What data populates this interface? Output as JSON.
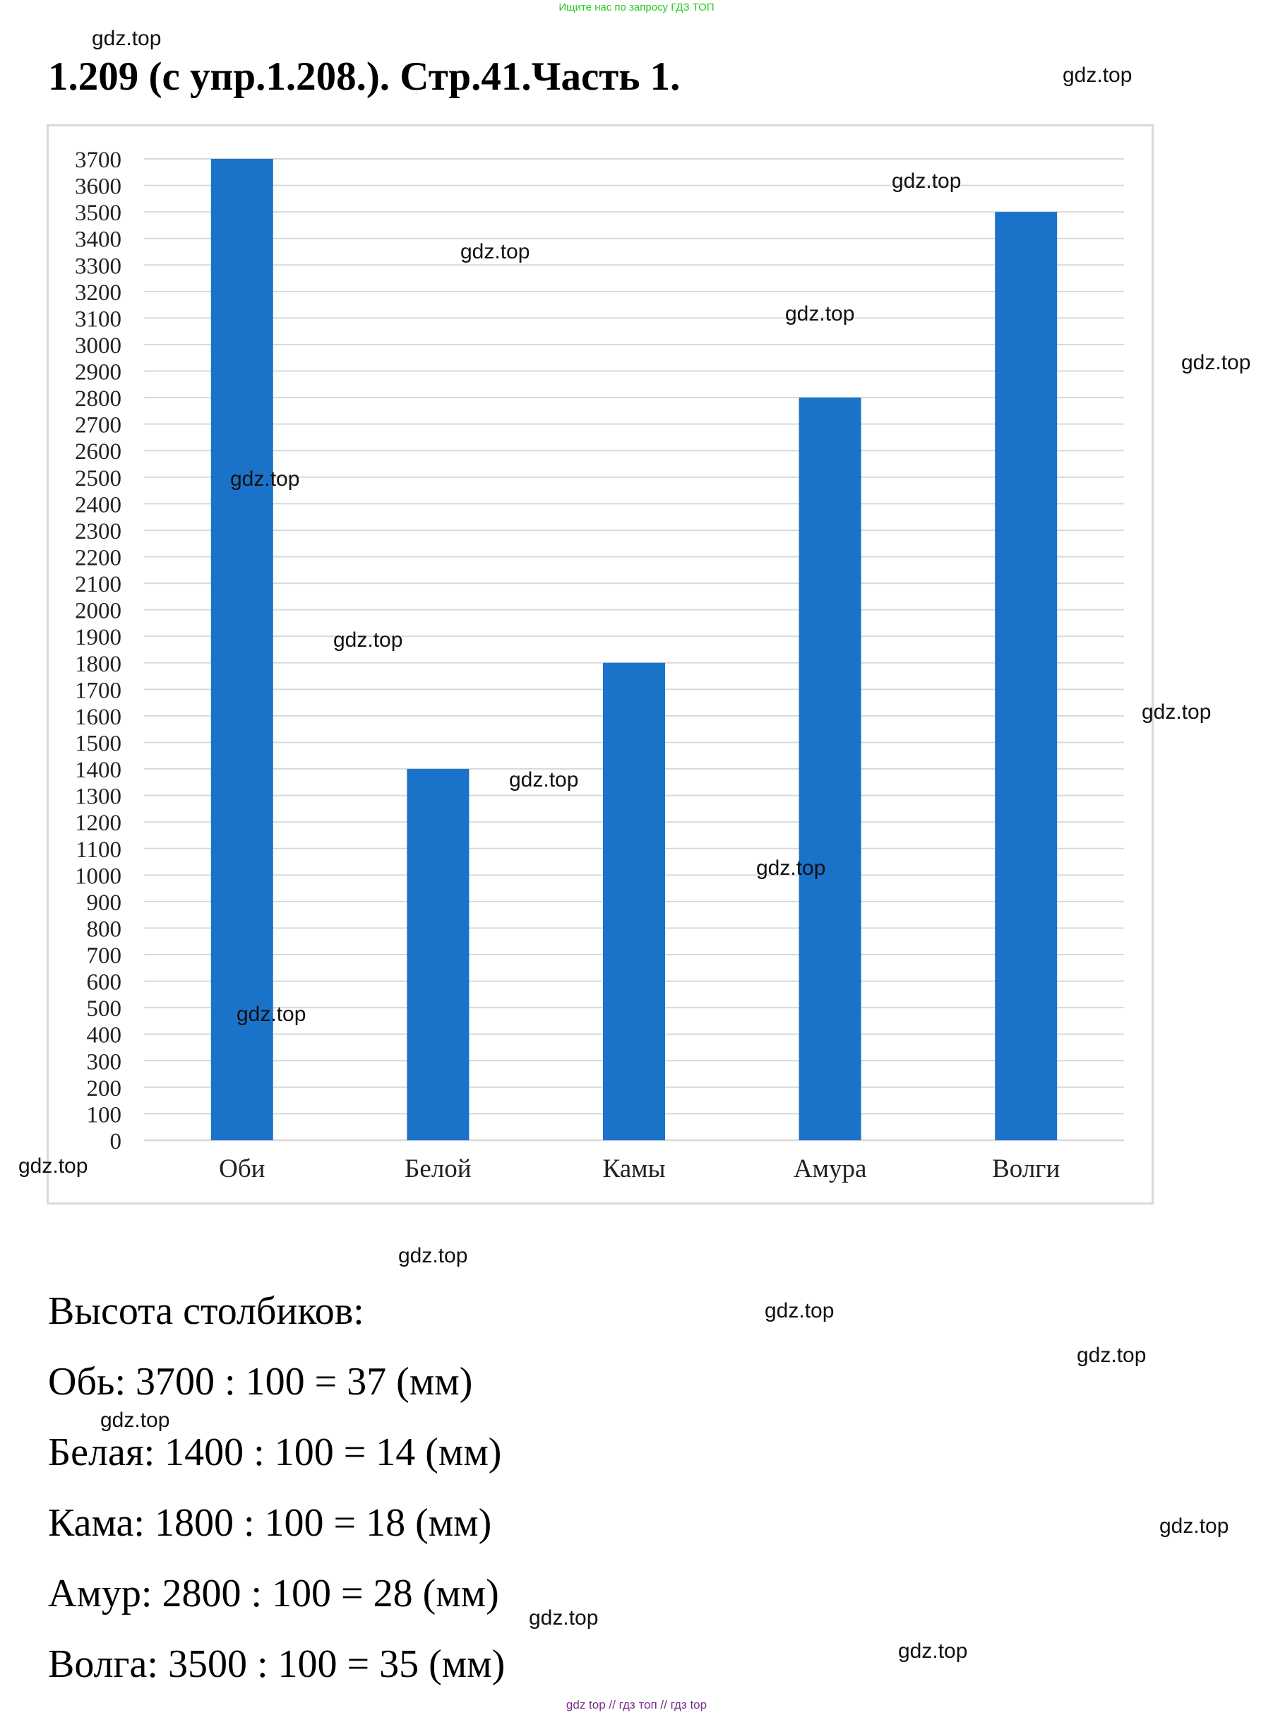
{
  "banner_top": "Ищите нас по запросу ГДЗ ТОП",
  "title": "1.209 (с упр.1.208.). Стр.41.Часть 1.",
  "chart_data": {
    "type": "bar",
    "categories": [
      "Оби",
      "Белой",
      "Камы",
      "Амура",
      "Волги"
    ],
    "values": [
      3700,
      1400,
      1800,
      2800,
      3500
    ],
    "ylim": [
      0,
      3700
    ],
    "ytick_step": 100,
    "grid": true,
    "bar_color": "#1b72c9",
    "grid_color": "#d9d9d9",
    "title": "",
    "xlabel": "",
    "ylabel": ""
  },
  "heights_heading": "Высота столбиков:",
  "calculations": [
    "Обь: 3700 : 100 = 37 (мм)",
    "Белая: 1400 : 100 = 14 (мм)",
    "Кама: 1800 : 100 = 18 (мм)",
    "Амур: 2800 : 100 = 28 (мм)",
    "Волга: 3500 : 100 = 35 (мм)"
  ],
  "watermark": "gdz.top",
  "banner_bottom": "gdz top  //  гдз топ  //  гдз top"
}
